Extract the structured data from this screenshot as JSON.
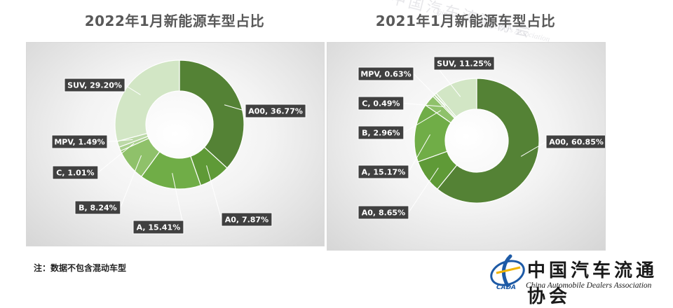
{
  "chart_data": [
    {
      "type": "pie",
      "title": "2022年1月新能源车型占比",
      "series": [
        {
          "values": [
            {
              "label": "A00, 36.77%",
              "category": "A00",
              "value": 36.77
            },
            {
              "label": "A0, 7.87%",
              "category": "A0",
              "value": 7.87
            },
            {
              "label": "A, 15.41%",
              "category": "A",
              "value": 15.41
            },
            {
              "label": "B, 8.24%",
              "category": "B",
              "value": 8.24
            },
            {
              "label": "C, 1.01%",
              "category": "C",
              "value": 1.01
            },
            {
              "label": "MPV, 1.49%",
              "category": "MPV",
              "value": 1.49
            },
            {
              "label": "SUV, 29.20%",
              "category": "SUV",
              "value": 29.2
            }
          ]
        }
      ]
    },
    {
      "type": "pie",
      "title": "2021年1月新能源车型占比",
      "series": [
        {
          "values": [
            {
              "label": "A00, 60.85%",
              "category": "A00",
              "value": 60.85
            },
            {
              "label": "A0, 8.65%",
              "category": "A0",
              "value": 8.65
            },
            {
              "label": "A, 15.17%",
              "category": "A",
              "value": 15.17
            },
            {
              "label": "B, 2.96%",
              "category": "B",
              "value": 2.96
            },
            {
              "label": "C, 0.49%",
              "category": "C",
              "value": 0.49
            },
            {
              "label": "MPV, 0.63%",
              "category": "MPV",
              "value": 0.63
            },
            {
              "label": "SUV, 11.25%",
              "category": "SUV",
              "value": 11.25
            }
          ]
        }
      ]
    }
  ],
  "colors": {
    "A00": "#548235",
    "A0": "#5f9a37",
    "A": "#70ad47",
    "B": "#8fc16a",
    "C": "#a8cf8c",
    "MPV": "#bcd9a7",
    "SUV": "#d2e6c5",
    "label_bg": "#404040",
    "label_text": "#ffffff",
    "title_text": "#595959"
  },
  "note": "注：数据不包含混动车型",
  "logo": {
    "name_cn": "中国汽车流通协会",
    "name_en": "China Automobile Dealers Association",
    "abbr": "CADA"
  }
}
